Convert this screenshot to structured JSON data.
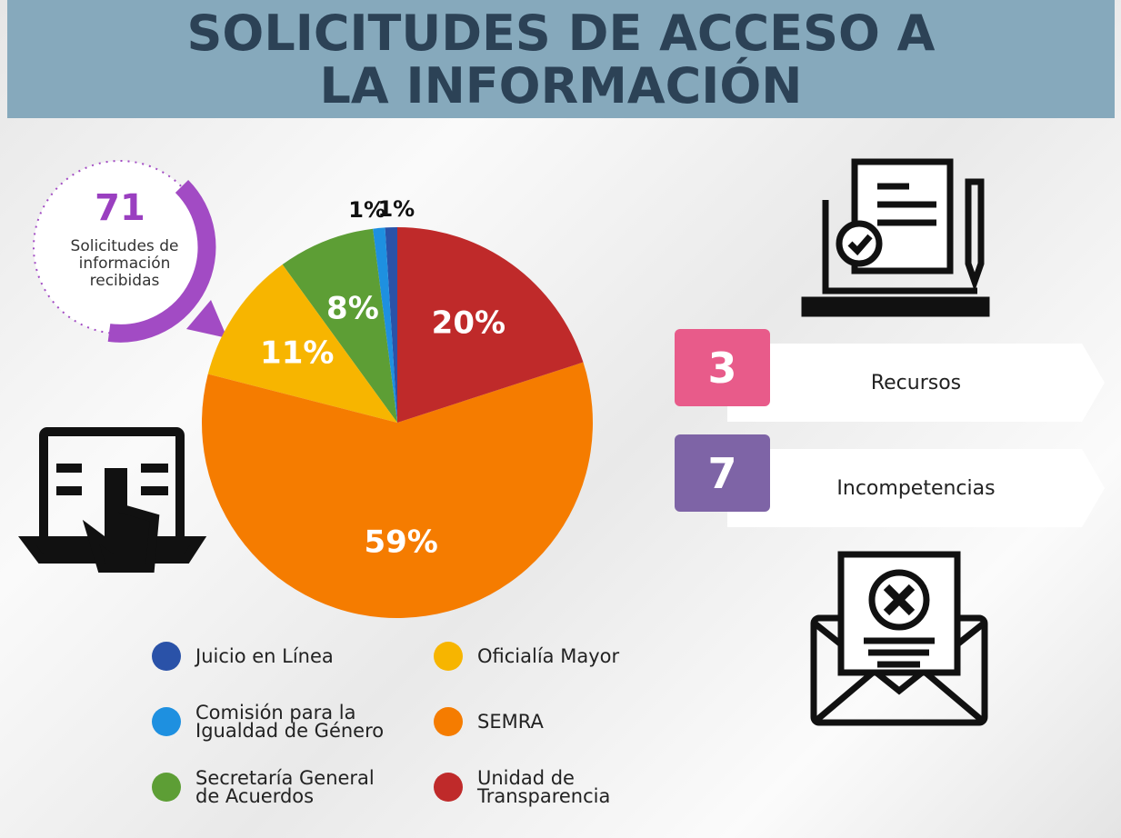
{
  "chart_data": {
    "type": "pie",
    "title": "SOLICITUDES DE ACCESO A LA INFORMACIÓN",
    "categories": [
      "Juicio en Línea",
      "Comisión para la Igualdad de Género",
      "Secretaría General de Acuerdos",
      "Oficialía Mayor",
      "SEMRA",
      "Unidad de Transparencia"
    ],
    "values": [
      1,
      1,
      8,
      11,
      59,
      20
    ],
    "value_labels": [
      "1%",
      "1%",
      "8%",
      "11%",
      "59%",
      "20%"
    ],
    "colors": [
      "#2a52a8",
      "#1e90e0",
      "#5d9e35",
      "#f7b500",
      "#f57c00",
      "#bf2a2a"
    ]
  },
  "badge": {
    "value": 71,
    "label": "Solicitudes de información recibidas"
  },
  "stats": [
    {
      "value": 3,
      "label": "Recursos",
      "color": "#e85b8a"
    },
    {
      "value": 7,
      "label": "Incompetencias",
      "color": "#7e64a6"
    }
  ]
}
